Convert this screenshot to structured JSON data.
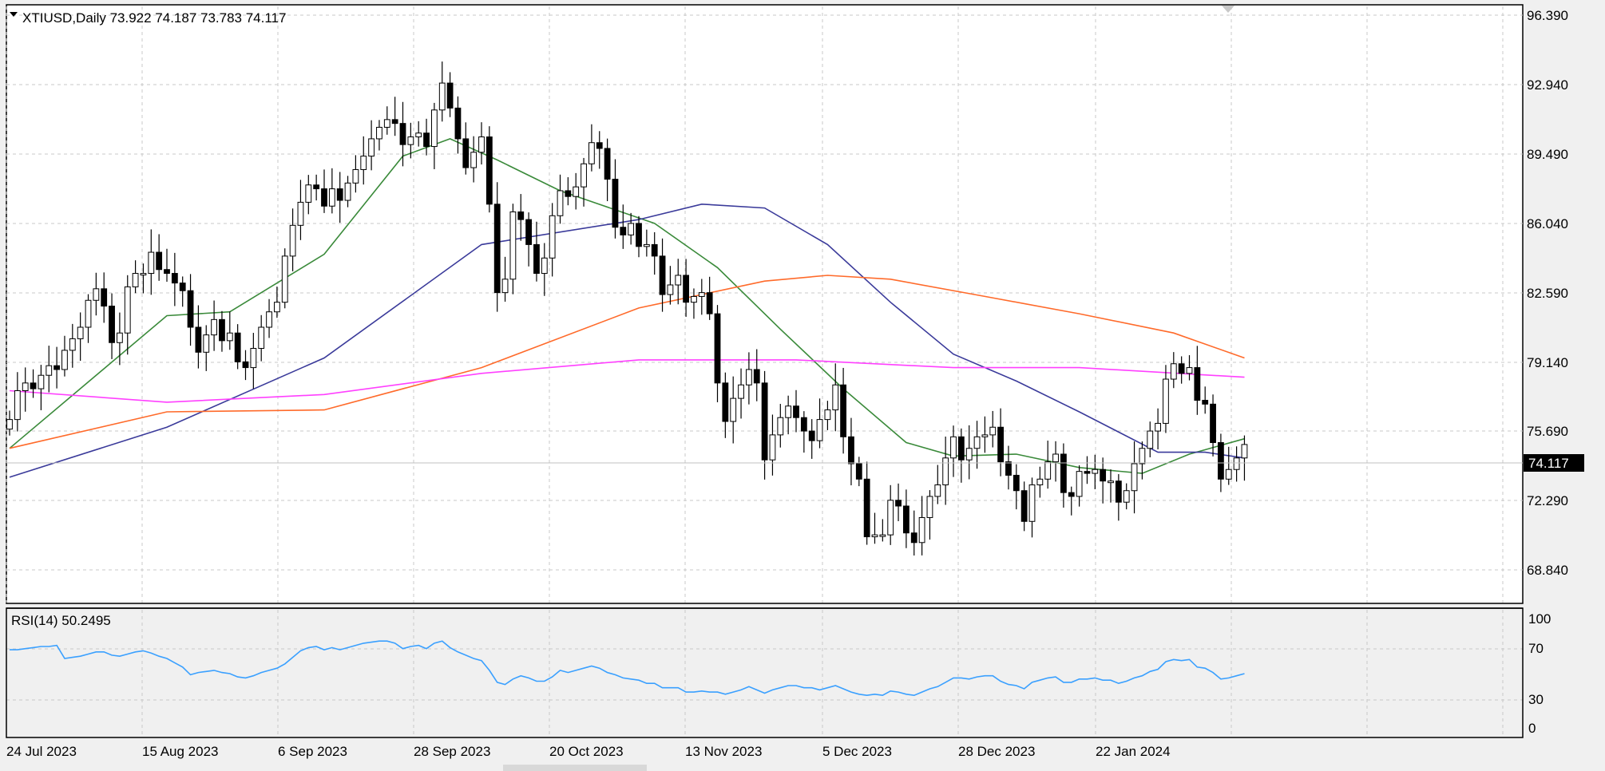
{
  "header": {
    "symbol_line": "XTIUSD,Daily  73.922 74.187 73.783 74.117"
  },
  "rsi_header": "RSI(14) 50.2495",
  "price_axis": {
    "labels": [
      "96.390",
      "92.940",
      "89.490",
      "86.040",
      "82.590",
      "79.140",
      "75.690",
      "72.290",
      "68.840"
    ],
    "current_price_label": "74.117"
  },
  "rsi_axis": {
    "labels": [
      "100",
      "70",
      "30",
      "0"
    ]
  },
  "time_axis": {
    "labels": [
      "24 Jul 2023",
      "15 Aug 2023",
      "6 Sep 2023",
      "28 Sep 2023",
      "20 Oct 2023",
      "13 Nov 2023",
      "5 Dec 2023",
      "28 Dec 2023",
      "22 Jan 2024"
    ]
  },
  "colors": {
    "candle_body": "#000000",
    "ma_green": "#3a8a3a",
    "ma_blue": "#3a3a9a",
    "ma_orange": "#ff6a2a",
    "ma_magenta": "#ff40ff",
    "rsi_line": "#3aa0ff",
    "grid": "#c8c8c8",
    "current_price_bg": "#000000"
  },
  "chart_data": [
    {
      "type": "candlestick",
      "symbol": "XTIUSD",
      "timeframe": "Daily",
      "ohlc_last": {
        "open": 73.922,
        "high": 74.187,
        "low": 73.783,
        "close": 74.117
      },
      "ylim": [
        66.5,
        96.39
      ],
      "grid": true,
      "dates_labeled": [
        "24 Jul 2023",
        "15 Aug 2023",
        "6 Sep 2023",
        "28 Sep 2023",
        "20 Oct 2023",
        "13 Nov 2023",
        "5 Dec 2023",
        "28 Dec 2023",
        "22 Jan 2024"
      ],
      "closes": [
        75.4,
        76.9,
        77.3,
        77.0,
        77.7,
        78.2,
        78.0,
        79.0,
        79.6,
        80.2,
        81.6,
        82.2,
        81.3,
        79.4,
        79.9,
        82.3,
        83.0,
        83.0,
        84.1,
        83.2,
        83.0,
        82.5,
        82.1,
        80.2,
        78.9,
        79.8,
        80.6,
        79.5,
        79.9,
        78.4,
        78.1,
        79.1,
        80.2,
        81.0,
        81.5,
        83.9,
        85.5,
        86.7,
        87.6,
        87.4,
        86.5,
        87.4,
        86.8,
        87.7,
        88.4,
        89.1,
        90.0,
        90.6,
        91.0,
        90.8,
        89.7,
        90.1,
        90.3,
        89.6,
        91.5,
        92.9,
        91.6,
        90.0,
        88.5,
        89.3,
        90.1,
        86.6,
        82.0,
        82.7,
        86.2,
        85.8,
        84.5,
        83.0,
        83.8,
        86.0,
        87.3,
        87.0,
        87.5,
        88.7,
        89.8,
        89.5,
        87.9,
        85.4,
        85.0,
        85.6,
        84.4,
        84.5,
        83.9,
        81.9,
        82.4,
        82.9,
        81.5,
        81.8,
        82.0,
        80.9,
        77.3,
        75.3,
        76.5,
        77.2,
        78.0,
        77.3,
        73.3,
        74.6,
        75.5,
        76.1,
        75.5,
        74.8,
        74.3,
        75.4,
        75.9,
        77.2,
        74.5,
        73.1,
        72.3,
        69.3,
        69.4,
        69.4,
        71.2,
        70.9,
        69.5,
        69.0,
        70.3,
        71.4,
        72.0,
        73.4,
        74.5,
        73.3,
        73.9,
        74.5,
        74.6,
        75.0,
        73.2,
        72.5,
        71.7,
        70.1,
        72.0,
        72.3,
        73.2,
        73.6,
        71.6,
        71.4,
        72.7,
        72.6,
        72.8,
        72.2,
        72.2,
        71.1,
        71.7,
        73.1,
        73.9,
        74.8,
        75.2,
        77.5,
        78.3,
        77.8,
        78.1,
        76.4,
        76.2,
        74.2,
        72.3,
        72.8,
        73.4,
        74.1
      ]
    },
    {
      "type": "line",
      "title": "RSI(14) 50.2495",
      "ylim": [
        0,
        100
      ],
      "last_value": 50.2495,
      "y_ticks": [
        0,
        30,
        70,
        100
      ],
      "values": [
        72,
        72,
        73,
        74,
        75,
        75,
        76,
        64,
        65,
        66,
        68,
        70,
        70,
        67,
        66,
        68,
        70,
        71,
        69,
        66,
        64,
        60,
        56,
        49,
        51,
        52,
        53,
        51,
        50,
        47,
        46,
        48,
        51,
        53,
        55,
        59,
        65,
        71,
        74,
        75,
        72,
        74,
        72,
        74,
        76,
        78,
        79,
        80,
        80,
        78,
        73,
        75,
        76,
        73,
        78,
        80,
        74,
        70,
        67,
        64,
        62,
        53,
        42,
        40,
        45,
        48,
        46,
        43,
        43,
        47,
        53,
        51,
        53,
        55,
        57,
        55,
        51,
        49,
        46,
        45,
        44,
        41,
        41,
        37,
        37,
        37,
        33,
        33,
        34,
        33,
        33,
        31,
        33,
        35,
        38,
        35,
        32,
        35,
        37,
        39,
        39,
        37,
        37,
        35,
        37,
        39,
        36,
        33,
        31,
        30,
        31,
        30,
        34,
        33,
        31,
        30,
        33,
        36,
        38,
        42,
        46,
        46,
        45,
        47,
        48,
        48,
        43,
        40,
        39,
        36,
        42,
        44,
        46,
        47,
        42,
        42,
        45,
        45,
        46,
        44,
        44,
        41,
        43,
        46,
        48,
        52,
        54,
        61,
        63,
        62,
        63,
        56,
        55,
        51,
        45,
        46,
        48,
        50
      ]
    },
    {
      "type": "line",
      "title": "Moving averages",
      "series": [
        {
          "color": "#3a8a3a",
          "values": [
            [
              0,
              73.9
            ],
            [
              20,
              80.8
            ],
            [
              28,
              81.0
            ],
            [
              40,
              84.0
            ],
            [
              50,
              89.1
            ],
            [
              56,
              90.0
            ],
            [
              62,
              88.9
            ],
            [
              70,
              87.3
            ],
            [
              82,
              85.6
            ],
            [
              90,
              83.3
            ],
            [
              98,
              80.1
            ],
            [
              106,
              77.0
            ],
            [
              114,
              74.2
            ],
            [
              120,
              73.5
            ],
            [
              128,
              73.6
            ],
            [
              136,
              72.9
            ],
            [
              144,
              72.6
            ],
            [
              150,
              73.6
            ],
            [
              157,
              74.4
            ]
          ]
        },
        {
          "color": "#3a3a9a",
          "values": [
            [
              0,
              72.4
            ],
            [
              20,
              75.0
            ],
            [
              40,
              78.6
            ],
            [
              60,
              84.5
            ],
            [
              80,
              85.8
            ],
            [
              88,
              86.6
            ],
            [
              96,
              86.4
            ],
            [
              104,
              84.5
            ],
            [
              112,
              81.5
            ],
            [
              120,
              78.8
            ],
            [
              128,
              77.4
            ],
            [
              136,
              75.8
            ],
            [
              146,
              73.7
            ],
            [
              152,
              73.7
            ],
            [
              157,
              73.4
            ]
          ]
        },
        {
          "color": "#ff6a2a",
          "values": [
            [
              0,
              73.9
            ],
            [
              20,
              75.8
            ],
            [
              40,
              75.9
            ],
            [
              60,
              78.1
            ],
            [
              80,
              81.2
            ],
            [
              96,
              82.6
            ],
            [
              104,
              82.9
            ],
            [
              112,
              82.7
            ],
            [
              124,
              81.8
            ],
            [
              136,
              80.9
            ],
            [
              148,
              79.9
            ],
            [
              157,
              78.6
            ]
          ]
        },
        {
          "color": "#ff40ff",
          "values": [
            [
              0,
              76.9
            ],
            [
              20,
              76.3
            ],
            [
              40,
              76.7
            ],
            [
              60,
              77.8
            ],
            [
              80,
              78.5
            ],
            [
              100,
              78.5
            ],
            [
              120,
              78.1
            ],
            [
              136,
              78.1
            ],
            [
              157,
              77.6
            ]
          ]
        }
      ]
    }
  ]
}
